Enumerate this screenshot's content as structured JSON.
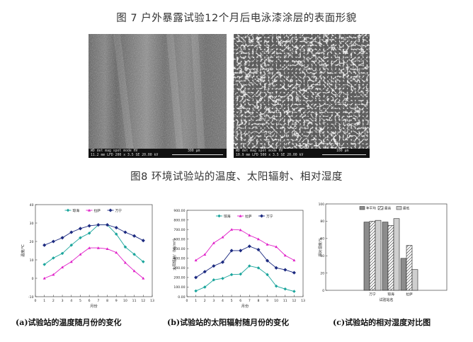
{
  "captions": {
    "fig7": "图 7  户外暴露试验12个月后电泳漆涂层的表面形貌",
    "fig8": "图8   环境试验站的温度、太阳辐射、相对湿度"
  },
  "sem_left": {
    "info_header": "WD     det   mag   spot   mode     HV",
    "info_values": "11.2 mm  LFD  200 x  3.5    SE    20.00 kV",
    "scale_label": "300 μm"
  },
  "sem_right": {
    "info_header": "WD     det   mag   spot   mode     HV",
    "info_values": "10.9 mm  LFD  500 x  3.5    SE    20.00 kV",
    "scale_label": "100 μm"
  },
  "subcaptions": {
    "a": "(a)试验站的温度随月份的变化",
    "b": "(b)试验站的太阳辐射随月份的变化",
    "c": "(c)试验站的相对湿度对比图"
  },
  "colors": {
    "series_cyan": "#1aa59c",
    "series_magenta": "#e020c8",
    "series_navy": "#1c2a80",
    "bar_dark": "#8c8c8c",
    "bar_light": "#cfcfcf"
  },
  "chart_data": [
    {
      "type": "line",
      "id": "temperature",
      "title": "",
      "xlabel": "月份",
      "ylabel": "温度/℃",
      "x": [
        1,
        2,
        3,
        4,
        5,
        6,
        7,
        8,
        9,
        10,
        11,
        12
      ],
      "xlim": [
        0,
        13
      ],
      "ylim": [
        -10,
        40
      ],
      "xticks": [
        "0",
        "1",
        "2",
        "3",
        "4",
        "5",
        "6",
        "7",
        "8",
        "9",
        "10",
        "11",
        "12",
        "13"
      ],
      "yticks": [
        "-10",
        "0",
        "10",
        "20",
        "30",
        "40"
      ],
      "legend_position": "top",
      "series": [
        {
          "name": "琼海",
          "color": "#1aa59c",
          "values": [
            7.5,
            11,
            13.5,
            18,
            22,
            24.5,
            29,
            29,
            24,
            17,
            13,
            9
          ]
        },
        {
          "name": "拉萨",
          "color": "#e020c8",
          "values": [
            0,
            2,
            6,
            9,
            13,
            16.5,
            16.5,
            16,
            14,
            8.5,
            4,
            0
          ]
        },
        {
          "name": "万宁",
          "color": "#1c2a80",
          "values": [
            18,
            20,
            22,
            25,
            27,
            28.5,
            29,
            29,
            27.5,
            25,
            23,
            20.5
          ]
        }
      ]
    },
    {
      "type": "line",
      "id": "solar",
      "title": "",
      "xlabel": "月份",
      "ylabel": "太阳辐射/（MJ/m²）",
      "x": [
        1,
        2,
        3,
        4,
        5,
        6,
        7,
        8,
        9,
        10,
        11,
        12
      ],
      "xlim": [
        0,
        13
      ],
      "ylim": [
        0,
        900
      ],
      "xticks": [
        "0",
        "1",
        "2",
        "3",
        "4",
        "5",
        "6",
        "7",
        "8",
        "9",
        "10",
        "11",
        "12",
        "13"
      ],
      "yticks": [
        "0.00",
        "100.00",
        "200.00",
        "300.00",
        "400.00",
        "500.00",
        "600.00",
        "700.00",
        "800.00",
        "900.00"
      ],
      "legend_position": "top",
      "series": [
        {
          "name": "琼海",
          "color": "#1aa59c",
          "values": [
            60,
            100,
            175,
            190,
            230,
            235,
            320,
            300,
            230,
            110,
            80,
            55
          ]
        },
        {
          "name": "拉萨",
          "color": "#e020c8",
          "values": [
            380,
            440,
            560,
            620,
            700,
            695,
            640,
            600,
            545,
            520,
            430,
            380
          ]
        },
        {
          "name": "万宁",
          "color": "#1c2a80",
          "values": [
            200,
            260,
            320,
            360,
            480,
            480,
            525,
            490,
            375,
            300,
            280,
            250
          ]
        }
      ]
    },
    {
      "type": "bar",
      "id": "humidity",
      "title": "",
      "xlabel": "试验站名",
      "ylabel": "相对湿度/%",
      "categories": [
        "万宁",
        "琼海",
        "拉萨"
      ],
      "ylim": [
        0,
        100
      ],
      "yticks": [
        "0",
        "20",
        "40",
        "60",
        "80",
        "100"
      ],
      "legend_position": "top",
      "series": [
        {
          "name": "年平均",
          "pattern": "solid-dark",
          "values": [
            79,
            79,
            37
          ]
        },
        {
          "name": "最高",
          "pattern": "hatched",
          "values": [
            80,
            75,
            52
          ]
        },
        {
          "name": "最低",
          "pattern": "solid-light",
          "values": [
            81,
            83,
            24
          ]
        }
      ]
    }
  ]
}
